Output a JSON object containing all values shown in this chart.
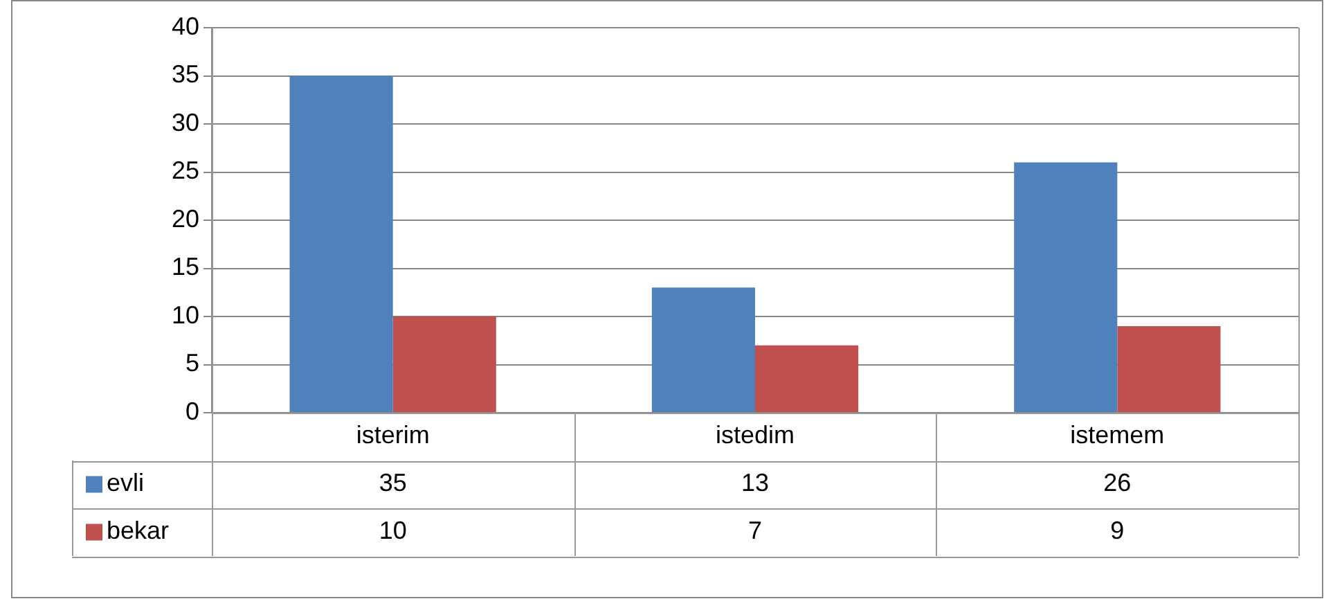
{
  "chart_data": {
    "type": "bar",
    "categories": [
      "isterim",
      "istedim",
      "istemem"
    ],
    "series": [
      {
        "name": "evli",
        "color": "#4f81bd",
        "values": [
          35,
          13,
          26
        ]
      },
      {
        "name": "bekar",
        "color": "#c0504d",
        "values": [
          10,
          7,
          9
        ]
      }
    ],
    "ylim": [
      0,
      40
    ],
    "yticks": [
      0,
      5,
      10,
      15,
      20,
      25,
      30,
      35,
      40
    ],
    "grid": "y",
    "legend": "bottom left",
    "data_labels": true
  }
}
